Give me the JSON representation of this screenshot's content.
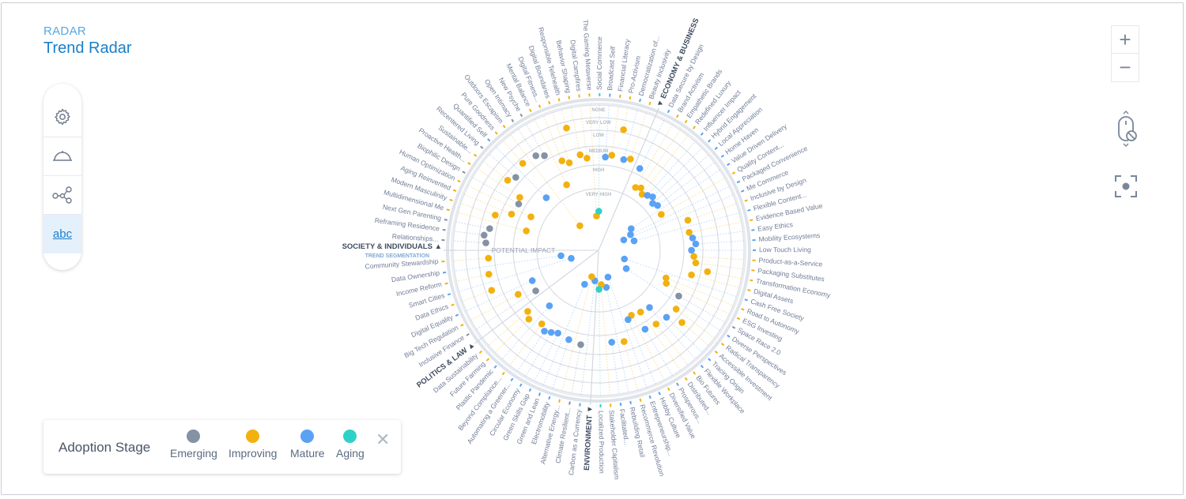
{
  "header": {
    "kicker": "RADAR",
    "title": "Trend Radar"
  },
  "toolbar": {
    "items": [
      {
        "icon": "gear-icon"
      },
      {
        "icon": "radar-arc-icon"
      },
      {
        "icon": "network-icon"
      },
      {
        "icon": "text-labels-icon",
        "label": "abc",
        "active": true
      }
    ]
  },
  "controls": {
    "zoom_in": "+",
    "zoom_out": "−",
    "scroll_icon": "mouse-scroll-disabled-icon",
    "focus_icon": "focus-center-icon"
  },
  "legend": {
    "title": "Adoption Stage",
    "items": [
      {
        "label": "Emerging",
        "color": "#8592a4"
      },
      {
        "label": "Improving",
        "color": "#f2b10f"
      },
      {
        "label": "Mature",
        "color": "#5aa2f4"
      },
      {
        "label": "Aging",
        "color": "#2fd1c6"
      }
    ]
  },
  "chart_data": {
    "type": "radar",
    "axis_label": "POTENTIAL IMPACT",
    "segmentation_label": "TREND SEGMENTATION",
    "impact_levels": [
      "NONE",
      "VERY LOW",
      "LOW",
      "MEDIUM",
      "HIGH",
      "VERY HIGH"
    ],
    "stage_colors": {
      "Emerging": "#8592a4",
      "Improving": "#f2b10f",
      "Mature": "#5aa2f4",
      "Aging": "#2fd1c6"
    },
    "segments": [
      {
        "name": "ECONOMY & BUSINESS",
        "arrow": "▼",
        "trends": [
          [
            "Data Secure by Design",
            "Mature",
            "MEDIUM"
          ],
          [
            "Brand Activism",
            "Improving",
            "HIGH"
          ],
          [
            "Empathetic Brands",
            "Improving",
            "HIGH"
          ],
          [
            "Redefined Luxury",
            "Improving",
            "HIGH"
          ],
          [
            "Influencer Impact",
            "Mature",
            "HIGH"
          ],
          [
            "Hybrid Engagement",
            "Mature",
            "HIGH"
          ],
          [
            "Local Appreciation",
            "Mature",
            "HIGH"
          ],
          [
            "Home Haven",
            "Mature",
            "HIGH"
          ],
          [
            "Value Driven Delivery",
            "Mature",
            "VERY HIGH"
          ],
          [
            "Quality Content...",
            "Improving",
            "HIGH"
          ],
          [
            "Packaged Convenience",
            "Mature",
            "VERY HIGH"
          ],
          [
            "Me Commerce",
            "Mature",
            "VERY HIGH"
          ],
          [
            "Inclusive by Design",
            "Improving",
            "MEDIUM"
          ],
          [
            "Flexible Content...",
            "Mature",
            "VERY HIGH"
          ],
          [
            "Evidence Based Value",
            "Improving",
            "MEDIUM"
          ],
          [
            "Easy Ethics",
            "Mature",
            "MEDIUM"
          ],
          [
            "Mobility Ecosystems",
            "Mature",
            "MEDIUM"
          ],
          [
            "Low Touch Living",
            "Mature",
            "MEDIUM"
          ],
          [
            "Product-as-a-Service",
            "Improving",
            "MEDIUM"
          ],
          [
            "Packaging Substitutes",
            "Improving",
            "MEDIUM"
          ],
          [
            "Transformation Economy",
            "Improving",
            "LOW"
          ],
          [
            "Digital Assets",
            "Improving",
            "MEDIUM"
          ],
          [
            "Cash Free Society",
            "Mature",
            "VERY HIGH"
          ],
          [
            "Road to Autonomy",
            "Improving",
            "HIGH"
          ],
          [
            "ESG Investing",
            "Improving",
            "HIGH"
          ],
          [
            "Space Race 2.0",
            "Emerging",
            "MEDIUM"
          ],
          [
            "Diverse Perspectives",
            "Mature",
            "VERY HIGH"
          ],
          [
            "Radical Transparency",
            "Improving",
            "MEDIUM"
          ],
          [
            "Accessible Investment",
            "Improving",
            "LOW"
          ],
          [
            "Tracing Origin",
            "Mature",
            "MEDIUM"
          ],
          [
            "Flexible Workplace",
            "Mature",
            "HIGH"
          ],
          [
            "Bio Futures",
            "Improving",
            "MEDIUM"
          ],
          [
            "Distributed...",
            "Improving",
            "HIGH"
          ],
          [
            "Prosperous...",
            "Mature",
            "MEDIUM"
          ],
          [
            "Diversified Value",
            "Improving",
            "HIGH"
          ],
          [
            "Hobby Culture",
            "Mature",
            "HIGH"
          ],
          [
            "Entrepreneurship...",
            "Mature",
            "VERY HIGH"
          ],
          [
            "Recommerce Revolution",
            "Improving",
            "MEDIUM"
          ],
          [
            "Rebuilding Retail",
            "Mature",
            "VERY HIGH"
          ],
          [
            "Facilitated...",
            "Mature",
            "MEDIUM"
          ],
          [
            "Stakeholder Capitalism",
            "Improving",
            "VERY HIGH"
          ],
          [
            "Localized Production",
            "Aging",
            "VERY HIGH"
          ]
        ]
      },
      {
        "name": "ENVIRONMENT",
        "arrow": "▼",
        "trends": [
          [
            "Carbon as a Currency",
            "Mature",
            "VERY HIGH"
          ],
          [
            "Climate Resilient...",
            "Emerging",
            "MEDIUM"
          ],
          [
            "Alternative Energy...",
            "Improving",
            "VERY HIGH"
          ],
          [
            "Electromobility",
            "Mature",
            "MEDIUM"
          ],
          [
            "Green and Lean",
            "Mature",
            "VERY HIGH"
          ],
          [
            "Green Skills Gap",
            "Mature",
            "MEDIUM"
          ],
          [
            "Circular Economy",
            "Mature",
            "MEDIUM"
          ],
          [
            "Automating a Greener...",
            "Mature",
            "MEDIUM"
          ],
          [
            "Beyond Compliance...",
            "Improving",
            "MEDIUM"
          ],
          [
            "Plastic Pandemic",
            "Mature",
            "HIGH"
          ],
          [
            "Future Farming",
            "Improving",
            "MEDIUM"
          ],
          [
            "Data Sustainability",
            "Improving",
            "MEDIUM"
          ]
        ]
      },
      {
        "name": "POLITICS & LAW",
        "arrow": "▲",
        "trends": [
          [
            "Inclusive Finance",
            "Emerging",
            "HIGH"
          ],
          [
            "Big Tech Regulation",
            "Improving",
            "MEDIUM"
          ],
          [
            "Digital Equality",
            "Mature",
            "HIGH"
          ],
          [
            "Data Ethics",
            "Improving",
            "LOW"
          ],
          [
            "Smart Cities",
            "Mature",
            "VERY HIGH"
          ],
          [
            "Income Reform",
            "Improving",
            "LOW"
          ],
          [
            "Data Ownership",
            "Mature",
            "VERY HIGH"
          ],
          [
            "Community Stewardship",
            "Improving",
            "LOW"
          ]
        ]
      },
      {
        "name": "SOCIETY & INDIVIDUALS",
        "arrow": "▲",
        "trends": [
          [
            "Relationships...",
            "Emerging",
            "LOW"
          ],
          [
            "Reframing Residence",
            "Emerging",
            "LOW"
          ],
          [
            "Next Gen Parenting",
            "Emerging",
            "LOW"
          ],
          [
            "Multidimensional Me",
            "Improving",
            "HIGH"
          ],
          [
            "Modern Masculinity",
            "Improving",
            "LOW"
          ],
          [
            "Aging Reinvented",
            "Improving",
            "MEDIUM"
          ],
          [
            "Human Optimization",
            "Improving",
            "HIGH"
          ],
          [
            "Biophilic Design",
            "Emerging",
            "MEDIUM"
          ],
          [
            "Proactive Health...",
            "Improving",
            "MEDIUM"
          ],
          [
            "Sustainable...",
            "Improving",
            "LOW"
          ],
          [
            "Recentered Living",
            "Emerging",
            "LOW"
          ],
          [
            "Quantified Self",
            "Mature",
            "HIGH"
          ],
          [
            "Pure Goodness",
            "Improving",
            "LOW"
          ],
          [
            "Outdoors Escapism",
            "Improving",
            "VERY HIGH"
          ],
          [
            "Open Intimacy",
            "Emerging",
            "LOW"
          ],
          [
            "New Psyche",
            "Emerging",
            "LOW"
          ],
          [
            "Mental Balance",
            "Improving",
            "HIGH"
          ],
          [
            "Digital Fitness...",
            "Improving",
            "MEDIUM"
          ],
          [
            "Digital Boundaries",
            "Improving",
            "MEDIUM"
          ],
          [
            "Responsible Telehealth",
            "Improving",
            "VERY LOW"
          ],
          [
            "Behavior Shaping",
            "Improving",
            "MEDIUM"
          ],
          [
            "Digital Campfires",
            "Improving",
            "MEDIUM"
          ],
          [
            "The Gaming Metaverse",
            "Improving",
            "VERY HIGH"
          ],
          [
            "Social Commerce",
            "Aging",
            "VERY HIGH"
          ],
          [
            "Broadcast Self",
            "Mature",
            "MEDIUM"
          ],
          [
            "Financial Literacy",
            "Improving",
            "MEDIUM"
          ],
          [
            "Pro-Activism",
            "Improving",
            "VERY LOW"
          ],
          [
            "Democratization of...",
            "Mature",
            "MEDIUM"
          ],
          [
            "Beauty Inclusivity",
            "Improving",
            "MEDIUM"
          ]
        ]
      }
    ]
  }
}
